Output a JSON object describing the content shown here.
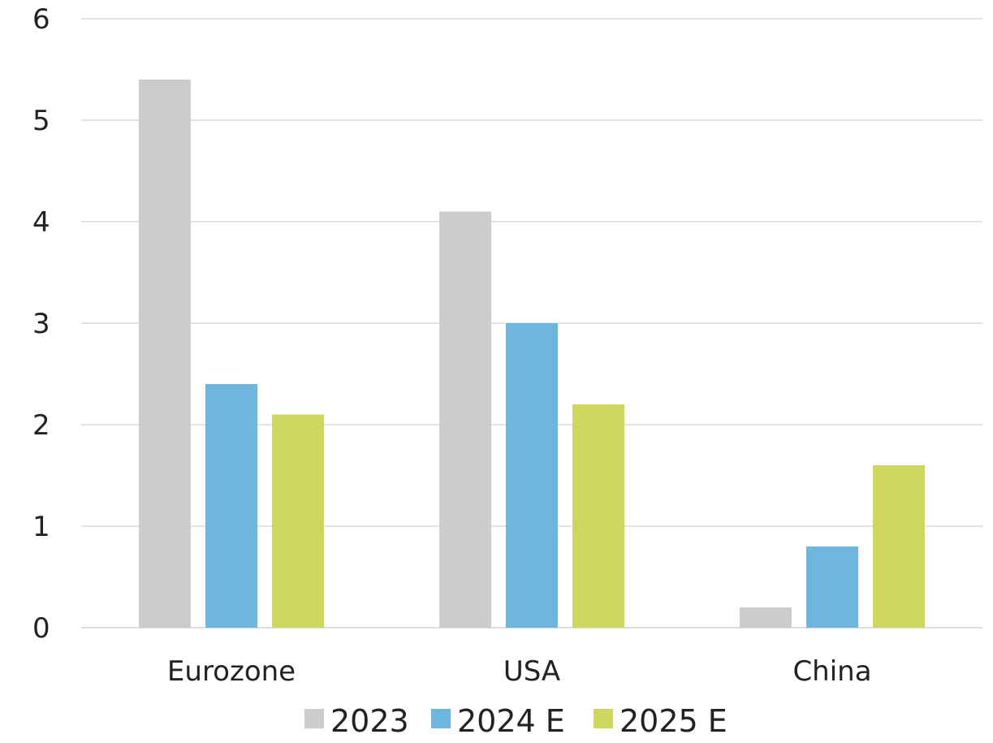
{
  "chart_data": {
    "type": "bar",
    "title": "",
    "xlabel": "",
    "ylabel": "",
    "categories": [
      "Eurozone",
      "USA",
      "China"
    ],
    "series": [
      {
        "name": "2023",
        "color": "#cccccc",
        "values": [
          5.4,
          4.1,
          0.2
        ]
      },
      {
        "name": "2024 E",
        "color": "#6fb6de",
        "values": [
          2.4,
          3.0,
          0.8
        ]
      },
      {
        "name": "2025 E",
        "color": "#cfd660",
        "values": [
          2.1,
          2.2,
          1.6
        ]
      }
    ],
    "ylim": [
      0,
      6
    ],
    "yticks": [
      "0",
      "1",
      "2",
      "3",
      "4",
      "5",
      "6"
    ],
    "grid": true,
    "legend_position": "bottom"
  }
}
